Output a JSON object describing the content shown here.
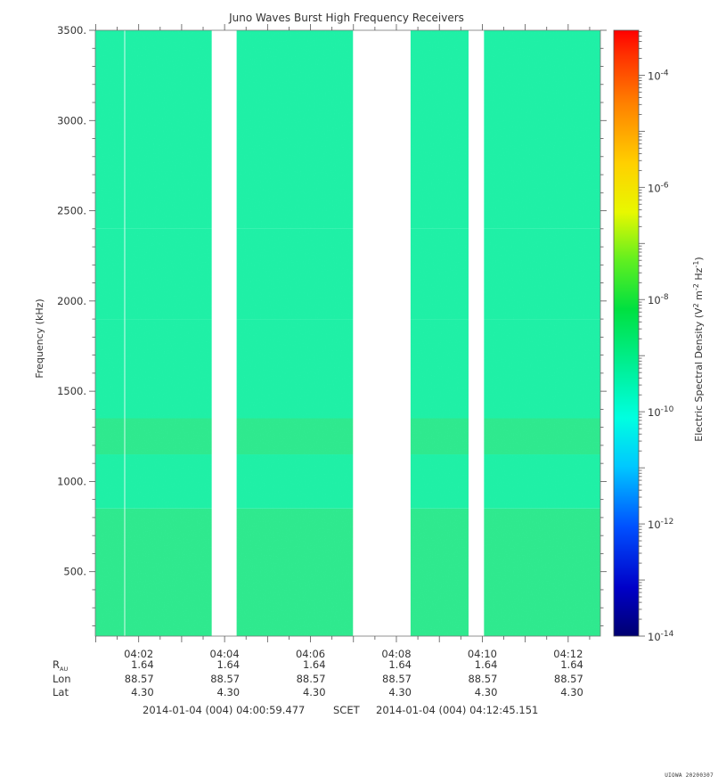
{
  "chart_data": {
    "type": "heatmap",
    "title": "Juno Waves Burst High Frequency Receivers",
    "ylabel": "Frequency (kHz)",
    "xlabel": "SCET",
    "y_range_khz": [
      143,
      3500
    ],
    "y_ticks": [
      "500.",
      "1000.",
      "1500.",
      "2000.",
      "2500.",
      "3000.",
      "3500."
    ],
    "y_tick_values": [
      500,
      1000,
      1500,
      2000,
      2500,
      3000,
      3500
    ],
    "x_range_min": [
      0.99,
      12.75
    ],
    "x_ticks": [
      "04:02",
      "04:04",
      "04:06",
      "04:08",
      "04:10",
      "04:12"
    ],
    "x_tick_values": [
      2,
      4,
      6,
      8,
      10,
      12
    ],
    "data_gaps_min": [
      [
        3.7,
        4.28
      ],
      [
        6.99,
        8.33
      ],
      [
        9.68,
        10.04
      ]
    ],
    "colorbar": {
      "label": "Electric Spectral Density (V² m⁻² Hz⁻¹)",
      "scale": "log",
      "range_exp": [
        -14,
        -3.2
      ],
      "ticks": [
        {
          "base": "10",
          "exp": "-4",
          "value_exp": -4
        },
        {
          "base": "10",
          "exp": "-6",
          "value_exp": -6
        },
        {
          "base": "10",
          "exp": "-8",
          "value_exp": -8
        },
        {
          "base": "10",
          "exp": "-10",
          "value_exp": -10
        },
        {
          "base": "10",
          "exp": "-12",
          "value_exp": -12
        },
        {
          "base": "10",
          "exp": "-14",
          "value_exp": -14
        }
      ]
    },
    "spectral_bands": [
      {
        "f_khz": [
          143,
          850
        ],
        "level": "green"
      },
      {
        "f_khz": [
          850,
          1150
        ],
        "level": "cyan-green"
      },
      {
        "f_khz": [
          1150,
          1350
        ],
        "level": "green"
      },
      {
        "f_khz": [
          1350,
          1900
        ],
        "level": "cyan-green"
      },
      {
        "f_khz": [
          1900,
          2400
        ],
        "level": "cyan-green"
      },
      {
        "f_khz": [
          2400,
          3500
        ],
        "level": "cyan-green"
      }
    ],
    "ephemeris": {
      "row_labels": [
        "R",
        "Lon",
        "Lat"
      ],
      "r_subscript": "AU",
      "rows": [
        [
          "1.64",
          "1.64",
          "1.64",
          "1.64",
          "1.64",
          "1.64"
        ],
        [
          "88.57",
          "88.57",
          "88.57",
          "88.57",
          "88.57",
          "88.57"
        ],
        [
          "4.30",
          "4.30",
          "4.30",
          "4.30",
          "4.30",
          "4.30"
        ]
      ]
    },
    "time_span": {
      "start": "2014-01-04 (004) 04:00:59.477",
      "label": "SCET",
      "end": "2014-01-04 (004) 04:12:45.151"
    }
  },
  "stamp": "UIOWA 20200307",
  "colors": {
    "green": "#2fe98e",
    "cyan_green": "#1ff0a6",
    "axis": "#555555"
  }
}
